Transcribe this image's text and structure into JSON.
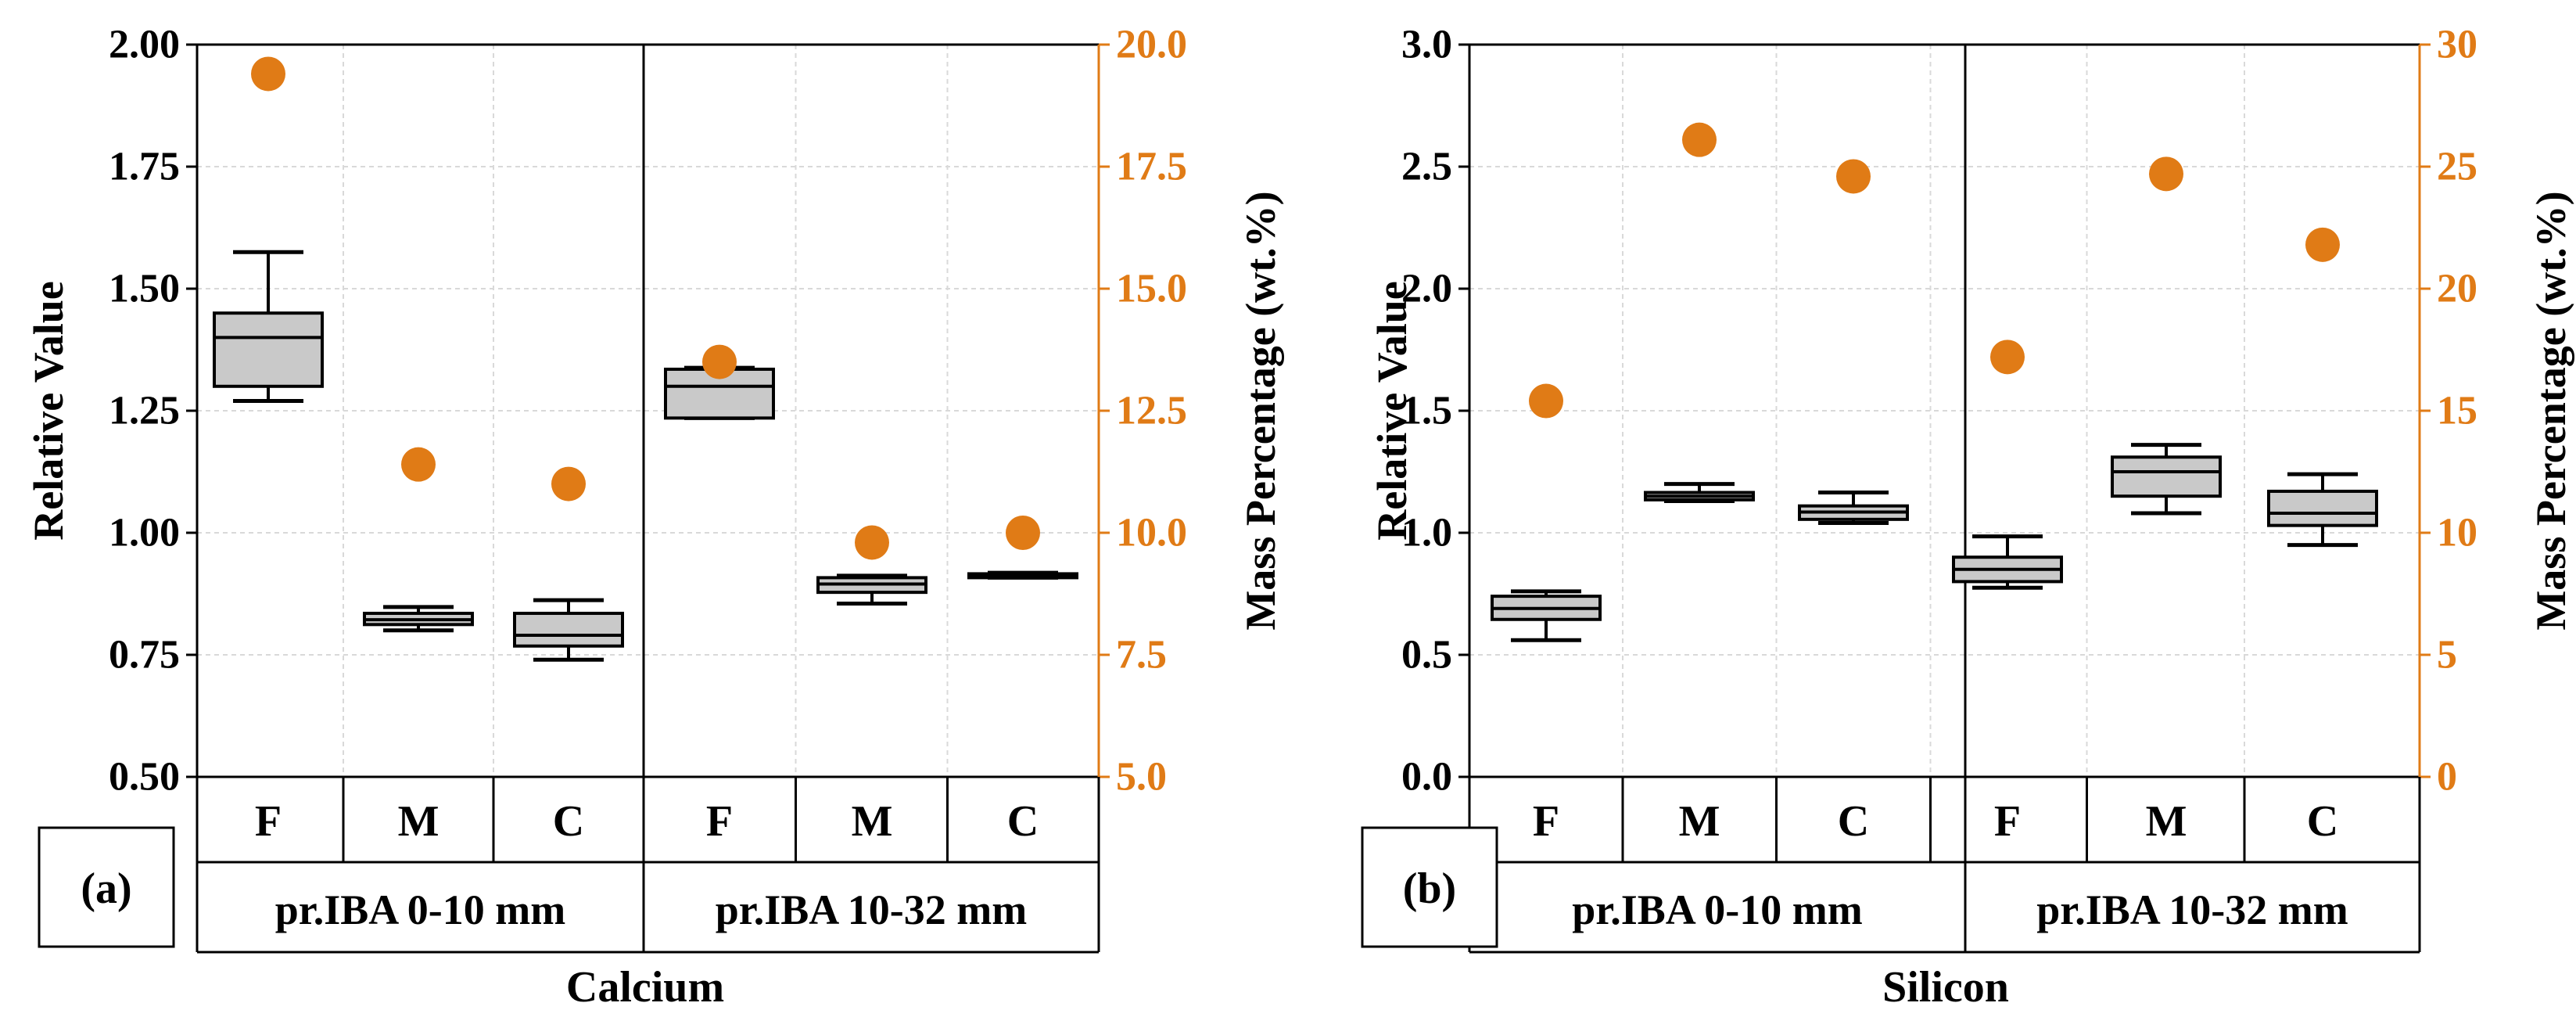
{
  "colors": {
    "right_axis": "#E07B16",
    "box_fill": "#C9C9C9",
    "grid": "#D9D9D9",
    "axis": "#000000"
  },
  "chart_data": [
    {
      "type": "box",
      "panel_label": "(a)",
      "title": "Calcium",
      "ylabel": "Relative Value",
      "ylabel_right": "Mass Percentage (wt.%)",
      "ylim": [
        0.5,
        2.0
      ],
      "ylim_right": [
        5.0,
        20.0
      ],
      "yticks": [
        "0.50",
        "0.75",
        "1.00",
        "1.25",
        "1.50",
        "1.75",
        "2.00"
      ],
      "yticks_right": [
        "5.0",
        "7.5",
        "10.0",
        "12.5",
        "15.0",
        "17.5",
        "20.0"
      ],
      "groups": [
        "pr.IBA 0-10 mm",
        "pr.IBA 10-32 mm"
      ],
      "categories": [
        "F",
        "M",
        "C",
        "F",
        "M",
        "C"
      ],
      "boxes": [
        {
          "min": 1.27,
          "q1": 1.3,
          "median": 1.4,
          "q3": 1.45,
          "max": 1.575
        },
        {
          "min": 0.8,
          "q1": 0.812,
          "median": 0.822,
          "q3": 0.835,
          "max": 0.848
        },
        {
          "min": 0.74,
          "q1": 0.768,
          "median": 0.79,
          "q3": 0.835,
          "max": 0.862
        },
        {
          "min": 1.235,
          "q1": 1.235,
          "median": 1.3,
          "q3": 1.335,
          "max": 1.338
        },
        {
          "min": 0.855,
          "q1": 0.878,
          "median": 0.895,
          "q3": 0.908,
          "max": 0.912
        },
        {
          "min": 0.908,
          "q1": 0.908,
          "median": 0.912,
          "q3": 0.916,
          "max": 0.918
        }
      ],
      "mass_percentage": [
        19.4,
        11.4,
        11.0,
        13.5,
        9.8,
        10.0
      ]
    },
    {
      "type": "box",
      "panel_label": "(b)",
      "title": "Silicon",
      "ylabel": "Relative Value",
      "ylabel_right": "Mass Percentage (wt.%)",
      "ylim": [
        0.0,
        3.0
      ],
      "ylim_right": [
        0,
        30
      ],
      "yticks": [
        "0.0",
        "0.5",
        "1.0",
        "1.5",
        "2.0",
        "2.5",
        "3.0"
      ],
      "yticks_right": [
        "0",
        "5",
        "10",
        "15",
        "20",
        "25",
        "30"
      ],
      "groups": [
        "pr.IBA 0-10 mm",
        "pr.IBA 10-32 mm"
      ],
      "categories": [
        "F",
        "M",
        "C",
        "F",
        "M",
        "C"
      ],
      "boxes": [
        {
          "min": 0.56,
          "q1": 0.645,
          "median": 0.69,
          "q3": 0.74,
          "max": 0.76
        },
        {
          "min": 1.13,
          "q1": 1.135,
          "median": 1.15,
          "q3": 1.165,
          "max": 1.2
        },
        {
          "min": 1.04,
          "q1": 1.055,
          "median": 1.085,
          "q3": 1.11,
          "max": 1.165
        },
        {
          "min": 0.775,
          "q1": 0.8,
          "median": 0.85,
          "q3": 0.9,
          "max": 0.985
        },
        {
          "min": 1.08,
          "q1": 1.15,
          "median": 1.25,
          "q3": 1.31,
          "max": 1.36
        },
        {
          "min": 0.95,
          "q1": 1.03,
          "median": 1.08,
          "q3": 1.17,
          "max": 1.24
        }
      ],
      "mass_percentage": [
        15.4,
        26.1,
        24.6,
        17.2,
        24.7,
        21.8
      ]
    }
  ]
}
